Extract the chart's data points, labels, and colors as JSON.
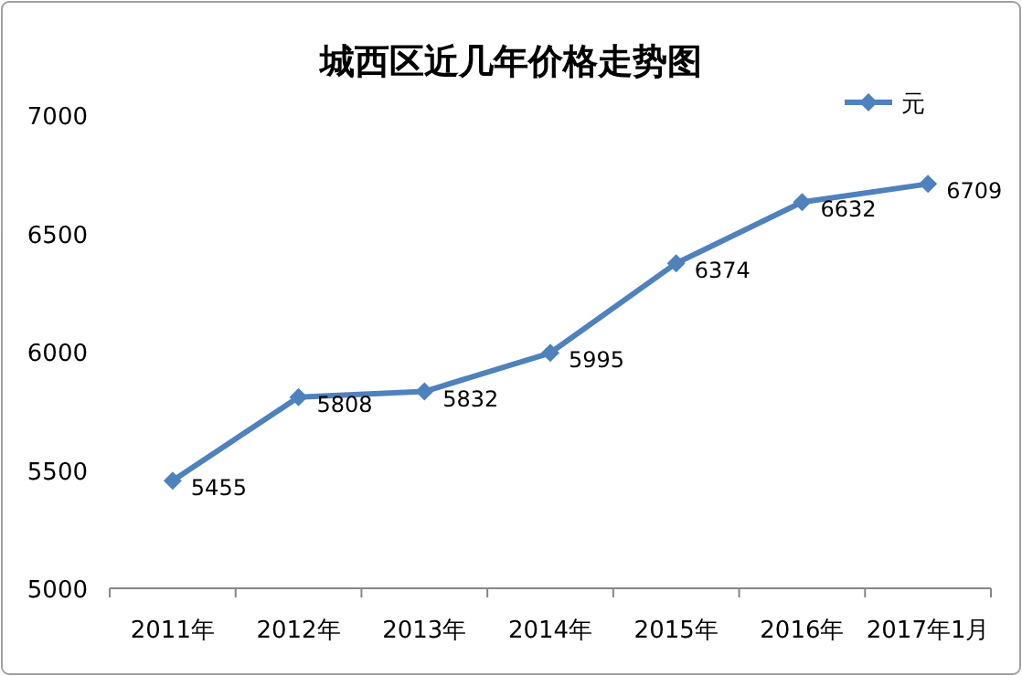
{
  "chart_data": {
    "type": "line",
    "title": "城西区近几年价格走势图",
    "categories": [
      "2011年",
      "2012年",
      "2013年",
      "2014年",
      "2015年",
      "2016年",
      "2017年1月"
    ],
    "series": [
      {
        "name": "元",
        "color": "#4f81bd",
        "values": [
          5455,
          5808,
          5832,
          5995,
          6374,
          6632,
          6709
        ]
      }
    ],
    "ylim": [
      5000,
      7000
    ],
    "yticks": [
      5000,
      5500,
      6000,
      6500,
      7000
    ],
    "data_labels": true,
    "legend": "top right",
    "marker": "diamond",
    "line_style": "solid",
    "grid": false
  }
}
